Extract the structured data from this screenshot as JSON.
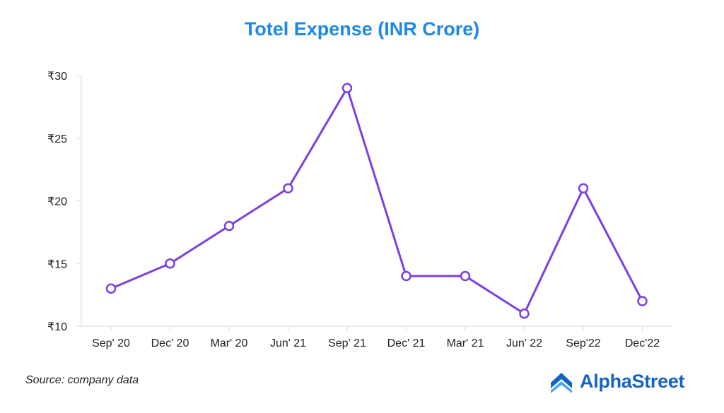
{
  "chart_data": {
    "type": "line",
    "title": "Totel Expense (INR Crore)",
    "categories": [
      "Sep' 20",
      "Dec' 20",
      "Mar' 20",
      "Jun' 21",
      "Sep' 21",
      "Dec' 21",
      "Mar' 21",
      "Jun' 22",
      "Sep'22",
      "Dec'22"
    ],
    "values": [
      13,
      15,
      18,
      21,
      29,
      14,
      14,
      11,
      21,
      12
    ],
    "y_ticks": [
      "₹10",
      "₹15",
      "₹20",
      "₹25",
      "₹30"
    ],
    "y_tick_values": [
      10,
      15,
      20,
      25,
      30
    ],
    "ylim": [
      10,
      30
    ],
    "grid": false,
    "legend": "none",
    "line_color": "#7b3fe4"
  },
  "footer": {
    "source": "Source: company data",
    "brand": "AlphaStreet",
    "brand_color": "#1565c0",
    "brand_icon": "alphastreet-logo-icon"
  },
  "colors": {
    "title": "#1e88e5",
    "axis": "#d9d9d9"
  }
}
